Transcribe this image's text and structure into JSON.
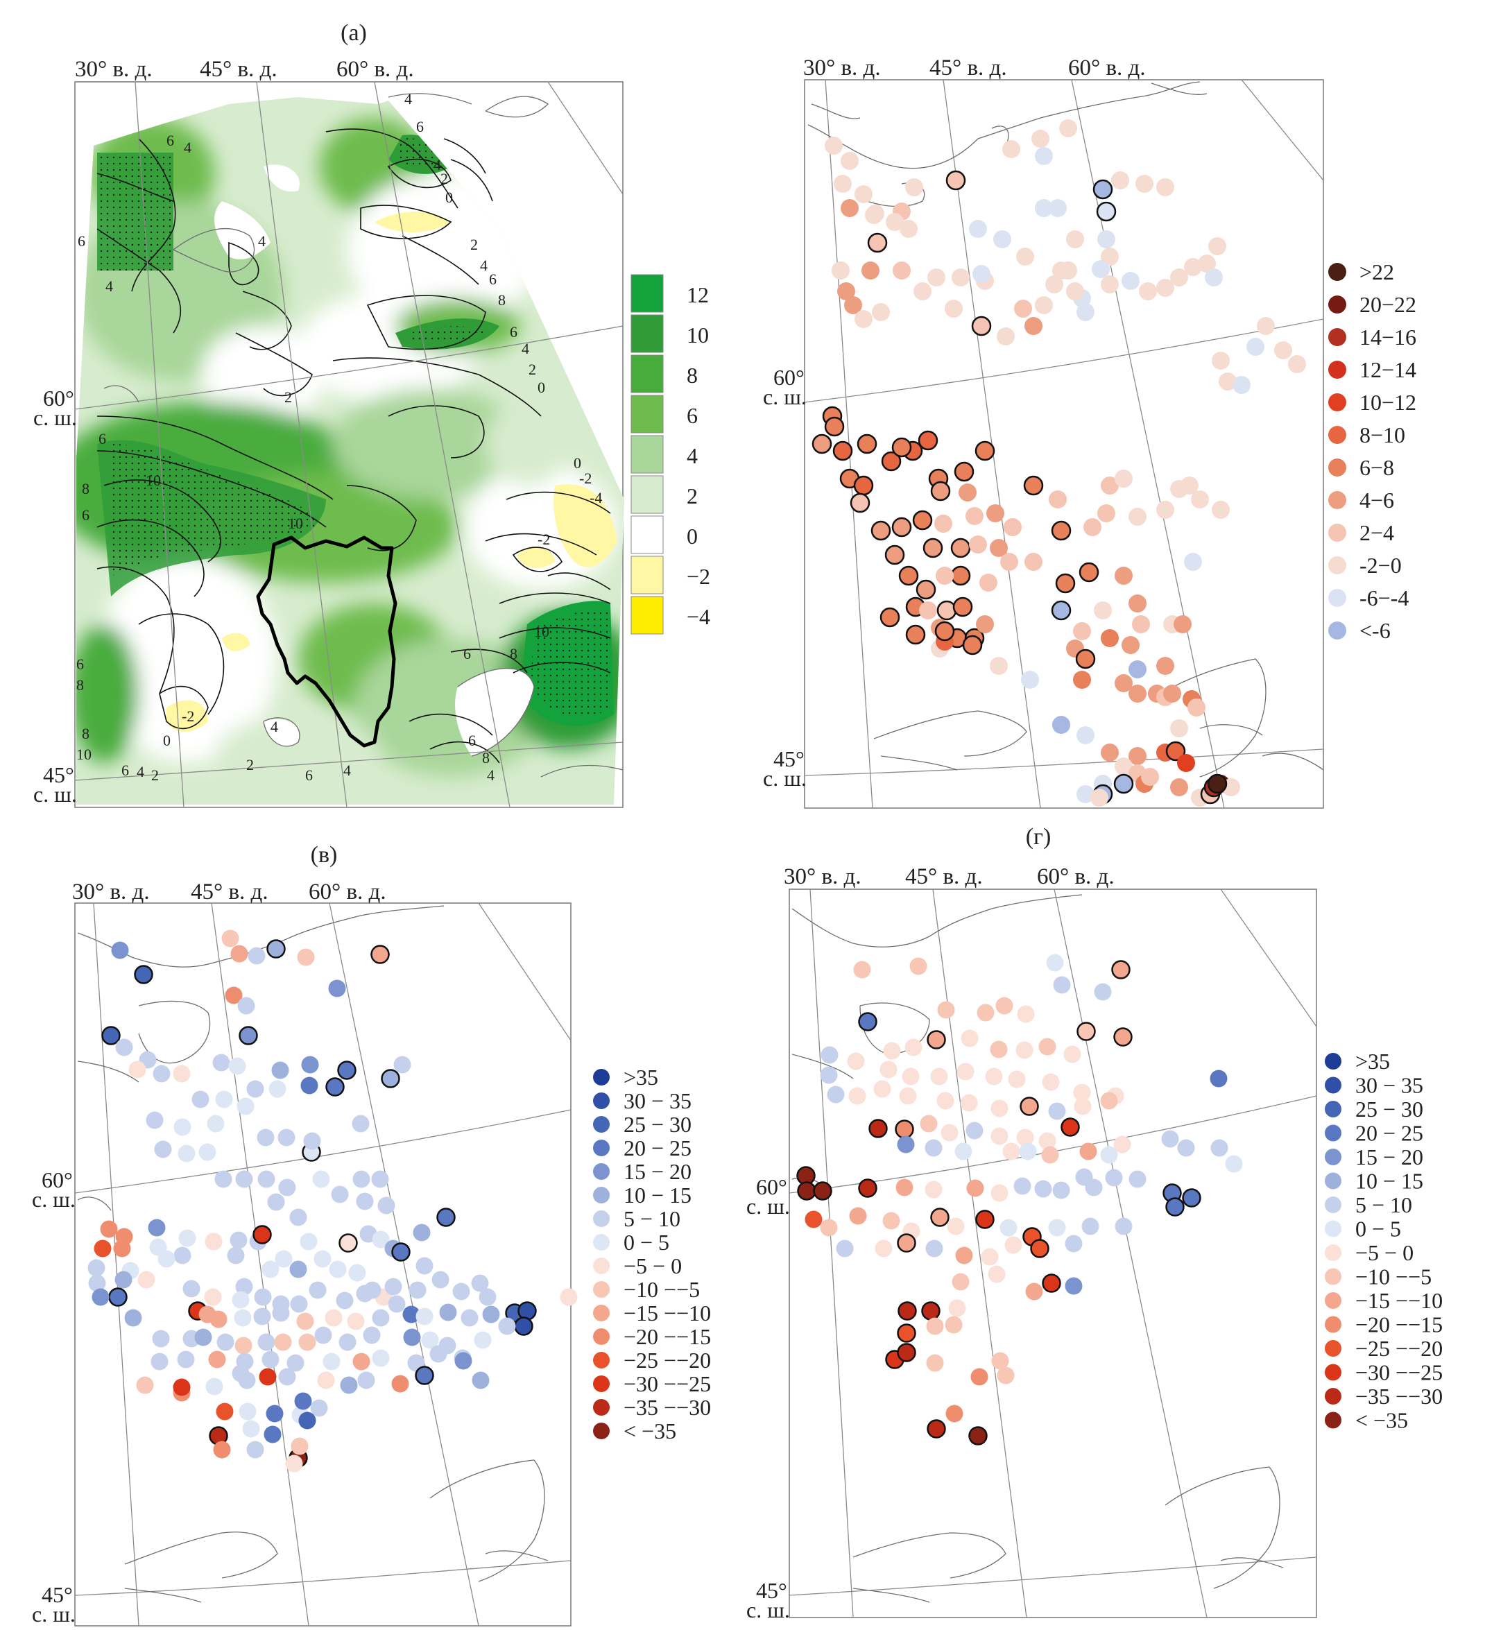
{
  "colors": {
    "fill_a": [
      "#ffed00",
      "#fff7a3",
      "#ffffff",
      "#d7ecce",
      "#a9d69a",
      "#6ebc4e",
      "#48ac3c",
      "#2f9c38",
      "#14a23c"
    ],
    "fill_b": [
      "#4a2015",
      "#771a12",
      "#b2301f",
      "#d3301d",
      "#e04020",
      "#e56640",
      "#e8805a",
      "#ee9e80",
      "#f6c4b2",
      "#f6dbd1",
      "#dbe3f3",
      "#a6b8e2",
      "#6f88cb"
    ],
    "fill_c": [
      "#1e3d96",
      "#3050a7",
      "#4565b5",
      "#5a78c1",
      "#7b93cf",
      "#9eb0dc",
      "#c5d1ec",
      "#dde6f5",
      "#fbe0d7",
      "#f8c6b4",
      "#f3a78e",
      "#ef8e6e",
      "#e9532c",
      "#db3519",
      "#bb2a17",
      "#8b2216"
    ]
  },
  "panel_a": {
    "title": "(а)",
    "lon_labels": [
      "30° в. д.",
      "45° в. д.",
      "60° в. д."
    ],
    "lat_labels": [
      [
        "60°",
        "с. ш."
      ],
      [
        "45°",
        "с. ш."
      ]
    ],
    "legend": [
      "12",
      "10",
      "8",
      "6",
      "4",
      "2",
      "0",
      "−2",
      "−4"
    ],
    "contour_labels": [
      "4",
      "6",
      "6",
      "4",
      "4",
      "2",
      "0",
      "2",
      "4",
      "6",
      "8",
      "6",
      "4",
      "2",
      "0",
      "6",
      "4",
      "4",
      "2",
      "6",
      "8",
      "10",
      "6",
      "10",
      "0",
      "-2",
      "-4",
      "-2",
      "6",
      "8",
      "8",
      "10",
      "6",
      "4",
      "2",
      "-2",
      "0",
      "4",
      "2",
      "6",
      "4",
      "8",
      "10",
      "6",
      "8",
      "6",
      "4"
    ]
  },
  "panel_b": {
    "title": "",
    "lon_labels": [
      "30° в. д.",
      "45° в. д.",
      "60° в. д."
    ],
    "lat_labels": [
      [
        "60°",
        "с. ш."
      ],
      [
        "45°",
        "с. ш."
      ]
    ],
    "legend": [
      ">22",
      "20−22",
      "14−16",
      "12−14",
      "10−12",
      "8−10",
      "6−8",
      "4−6",
      "2−4",
      "-2−0",
      "-6−-4",
      "<-6"
    ]
  },
  "panel_c": {
    "title": "(в)",
    "lon_labels": [
      "30° в. д.",
      "45° в. д.",
      "60° в. д."
    ],
    "lat_labels": [
      [
        "60°",
        "с. ш."
      ],
      [
        "45°",
        "с. ш."
      ]
    ],
    "legend": [
      ">35",
      "30  − 35",
      "25 − 30",
      "20 − 25",
      "15 − 20",
      "10 − 15",
      "5 − 10",
      "0 − 5",
      "−5 − 0",
      "−10 −−5",
      "−15 −−10",
      "−20 −−15",
      "−25 −−20",
      "−30 −−25",
      "−35 −−30",
      "< −35"
    ]
  },
  "panel_d": {
    "title": "(г)",
    "lon_labels": [
      "30° в. д.",
      "45° в. д.",
      "60° в. д."
    ],
    "lat_labels": [
      [
        "60°",
        "с. ш."
      ],
      [
        "45°",
        "с. ш."
      ]
    ],
    "legend": [
      ">35",
      "30  − 35",
      "25 − 30",
      "20 − 25",
      "15 − 20",
      "10 − 15",
      "5 − 10",
      "0 − 5",
      "−5 − 0",
      "−10 −−5",
      "−15 −−10",
      "−20 −−15",
      "−25 −−20",
      "−30 −−25",
      "−35 −−30",
      "< −35"
    ]
  },
  "stations_b": [
    [
      9,
      1202,
      210,
      0
    ],
    [
      9,
      1225,
      232,
      0
    ],
    [
      9,
      1215,
      265,
      0
    ],
    [
      9,
      1245,
      280,
      0
    ],
    [
      9,
      1262,
      308,
      0
    ],
    [
      8,
      1300,
      305,
      0
    ],
    [
      9,
      1318,
      270,
      0
    ],
    [
      8,
      1378,
      260,
      1
    ],
    [
      10,
      1410,
      330,
      0
    ],
    [
      9,
      1458,
      215,
      0
    ],
    [
      9,
      1500,
      200,
      0
    ],
    [
      9,
      1540,
      185,
      0
    ],
    [
      10,
      1505,
      225,
      0
    ],
    [
      10,
      1525,
      300,
      0
    ],
    [
      9,
      1550,
      345,
      0
    ],
    [
      10,
      1505,
      300,
      0
    ],
    [
      10,
      1445,
      345,
      0
    ],
    [
      9,
      1478,
      370,
      0
    ],
    [
      9,
      1420,
      405,
      0
    ],
    [
      10,
      1415,
      395,
      0
    ],
    [
      9,
      1540,
      390,
      0
    ],
    [
      10,
      1560,
      430,
      0
    ],
    [
      9,
      1600,
      370,
      0
    ],
    [
      10,
      1595,
      345,
      0
    ],
    [
      11,
      1590,
      273,
      1
    ],
    [
      9,
      1615,
      260,
      0
    ],
    [
      9,
      1650,
      265,
      0
    ],
    [
      9,
      1680,
      270,
      0
    ],
    [
      10,
      1587,
      388,
      0
    ],
    [
      10,
      1595,
      305,
      1
    ],
    [
      7,
      1225,
      300,
      0
    ],
    [
      9,
      1260,
      310,
      0
    ],
    [
      9,
      1290,
      320,
      0
    ],
    [
      8,
      1265,
      350,
      1
    ],
    [
      9,
      1310,
      330,
      0
    ],
    [
      7,
      1255,
      390,
      0
    ],
    [
      9,
      1270,
      450,
      0
    ],
    [
      7,
      1230,
      440,
      0
    ],
    [
      7,
      1220,
      420,
      0
    ],
    [
      9,
      1212,
      390,
      0
    ],
    [
      9,
      1245,
      460,
      0
    ],
    [
      8,
      1300,
      390,
      0
    ],
    [
      9,
      1350,
      400,
      0
    ],
    [
      9,
      1385,
      400,
      0
    ],
    [
      9,
      1330,
      420,
      0
    ],
    [
      9,
      1375,
      445,
      0
    ],
    [
      8,
      1415,
      470,
      1
    ],
    [
      9,
      1450,
      485,
      0
    ],
    [
      8,
      1475,
      445,
      0
    ],
    [
      9,
      1505,
      440,
      0
    ],
    [
      7,
      1490,
      470,
      0
    ],
    [
      9,
      1520,
      410,
      0
    ],
    [
      9,
      1530,
      390,
      0
    ],
    [
      9,
      1550,
      420,
      0
    ],
    [
      10,
      1565,
      450,
      0
    ],
    [
      9,
      1600,
      410,
      0
    ],
    [
      10,
      1630,
      405,
      0
    ],
    [
      9,
      1655,
      420,
      0
    ],
    [
      9,
      1680,
      415,
      0
    ],
    [
      9,
      1700,
      400,
      0
    ],
    [
      9,
      1720,
      385,
      0
    ],
    [
      9,
      1740,
      380,
      0
    ],
    [
      10,
      1750,
      400,
      0
    ],
    [
      9,
      1755,
      355,
      0
    ],
    [
      9,
      1760,
      520,
      0
    ],
    [
      9,
      1770,
      550,
      0
    ],
    [
      10,
      1790,
      555,
      0
    ],
    [
      10,
      1810,
      500,
      0
    ],
    [
      9,
      1825,
      470,
      0
    ],
    [
      9,
      1850,
      505,
      0
    ],
    [
      9,
      1870,
      525,
      0
    ],
    [
      6,
      1200,
      600,
      1
    ],
    [
      6,
      1203,
      615,
      1
    ],
    [
      5,
      1215,
      650,
      1
    ],
    [
      6,
      1225,
      690,
      1
    ],
    [
      5,
      1245,
      700,
      1
    ],
    [
      5,
      1285,
      665,
      1
    ],
    [
      5,
      1316,
      650,
      1
    ],
    [
      5,
      1338,
      635,
      1
    ],
    [
      6,
      1353,
      690,
      1
    ],
    [
      6,
      1390,
      680,
      1
    ],
    [
      6,
      1420,
      650,
      1
    ],
    [
      6,
      1250,
      640,
      1
    ],
    [
      6,
      1300,
      645,
      1
    ],
    [
      7,
      1395,
      710,
      0
    ],
    [
      7,
      1356,
      708,
      1
    ],
    [
      8,
      1405,
      744,
      0
    ],
    [
      7,
      1185,
      640,
      1
    ],
    [
      8,
      1240,
      725,
      1
    ],
    [
      7,
      1270,
      765,
      1
    ],
    [
      7,
      1300,
      760,
      1
    ],
    [
      6,
      1330,
      750,
      1
    ],
    [
      8,
      1360,
      755,
      0
    ],
    [
      7,
      1385,
      790,
      1
    ],
    [
      8,
      1410,
      785,
      0
    ],
    [
      7,
      1435,
      740,
      0
    ],
    [
      8,
      1460,
      760,
      0
    ],
    [
      6,
      1490,
      700,
      1
    ],
    [
      8,
      1525,
      720,
      0
    ],
    [
      6,
      1530,
      765,
      1
    ],
    [
      8,
      1575,
      760,
      0
    ],
    [
      8,
      1600,
      700,
      0
    ],
    [
      9,
      1620,
      690,
      0
    ],
    [
      8,
      1595,
      740,
      0
    ],
    [
      9,
      1640,
      745,
      0
    ],
    [
      9,
      1680,
      735,
      0
    ],
    [
      9,
      1700,
      705,
      0
    ],
    [
      9,
      1715,
      700,
      0
    ],
    [
      9,
      1730,
      720,
      0
    ],
    [
      9,
      1760,
      735,
      0
    ],
    [
      7,
      1290,
      800,
      1
    ],
    [
      7,
      1345,
      790,
      1
    ],
    [
      6,
      1310,
      830,
      1
    ],
    [
      7,
      1335,
      850,
      1
    ],
    [
      6,
      1385,
      830,
      1
    ],
    [
      6,
      1320,
      875,
      1
    ],
    [
      8,
      1362,
      830,
      0
    ],
    [
      8,
      1338,
      880,
      0
    ],
    [
      8,
      1365,
      880,
      1
    ],
    [
      6,
      1388,
      875,
      1
    ],
    [
      8,
      1425,
      840,
      0
    ],
    [
      7,
      1440,
      790,
      0
    ],
    [
      8,
      1455,
      810,
      0
    ],
    [
      8,
      1490,
      810,
      0
    ],
    [
      6,
      1536,
      841,
      1
    ],
    [
      11,
      1530,
      880,
      1
    ],
    [
      6,
      1570,
      825,
      1
    ],
    [
      9,
      1590,
      880,
      0
    ],
    [
      7,
      1620,
      830,
      0
    ],
    [
      7,
      1640,
      870,
      0
    ],
    [
      8,
      1645,
      900,
      0
    ],
    [
      9,
      1690,
      900,
      0
    ],
    [
      10,
      1720,
      810,
      0
    ],
    [
      6,
      1283,
      890,
      1
    ],
    [
      6,
      1320,
      915,
      1
    ],
    [
      7,
      1355,
      905,
      0
    ],
    [
      6,
      1380,
      920,
      1
    ],
    [
      6,
      1405,
      920,
      1
    ],
    [
      9,
      1355,
      935,
      0
    ],
    [
      5,
      1362,
      925,
      0
    ],
    [
      6,
      1362,
      910,
      1
    ],
    [
      6,
      1402,
      930,
      1
    ],
    [
      7,
      1420,
      900,
      0
    ],
    [
      9,
      1440,
      960,
      0
    ],
    [
      10,
      1485,
      980,
      0
    ],
    [
      7,
      1550,
      935,
      0
    ],
    [
      8,
      1560,
      910,
      0
    ],
    [
      6,
      1565,
      950,
      1
    ],
    [
      6,
      1600,
      920,
      0
    ],
    [
      7,
      1630,
      930,
      0
    ],
    [
      11,
      1640,
      965,
      0
    ],
    [
      7,
      1680,
      960,
      0
    ],
    [
      7,
      1705,
      900,
      0
    ],
    [
      6,
      1560,
      980,
      0
    ],
    [
      7,
      1620,
      985,
      0
    ],
    [
      7,
      1640,
      1000,
      0
    ],
    [
      7,
      1668,
      1000,
      0
    ],
    [
      8,
      1680,
      1005,
      0
    ],
    [
      7,
      1690,
      1000,
      0
    ],
    [
      9,
      1700,
      1050,
      0
    ],
    [
      6,
      1718,
      1008,
      0
    ],
    [
      8,
      1725,
      1020,
      0
    ],
    [
      7,
      1600,
      1085,
      0
    ],
    [
      7,
      1640,
      1090,
      0
    ],
    [
      5,
      1680,
      1085,
      0
    ],
    [
      5,
      1695,
      1083,
      1
    ],
    [
      4,
      1710,
      1100,
      0
    ],
    [
      9,
      1620,
      1105,
      0
    ],
    [
      8,
      1640,
      1115,
      0
    ],
    [
      6,
      1650,
      1130,
      0
    ],
    [
      8,
      1658,
      1120,
      0
    ],
    [
      7,
      1700,
      1135,
      0
    ],
    [
      9,
      1730,
      1150,
      0
    ],
    [
      8,
      1745,
      1145,
      1
    ],
    [
      2,
      1750,
      1135,
      1
    ],
    [
      1,
      1760,
      1130,
      0
    ],
    [
      9,
      1775,
      1135,
      0
    ],
    [
      11,
      1530,
      1045,
      0
    ],
    [
      10,
      1565,
      1060,
      0
    ],
    [
      10,
      1590,
      1130,
      0
    ],
    [
      11,
      1620,
      1130,
      1
    ],
    [
      10,
      1585,
      1150,
      0
    ],
    [
      11,
      1590,
      1145,
      1
    ],
    [
      10,
      1565,
      1145,
      0
    ],
    [
      9,
      1585,
      1150,
      0
    ],
    [
      0,
      1755,
      1130,
      1
    ]
  ]
}
